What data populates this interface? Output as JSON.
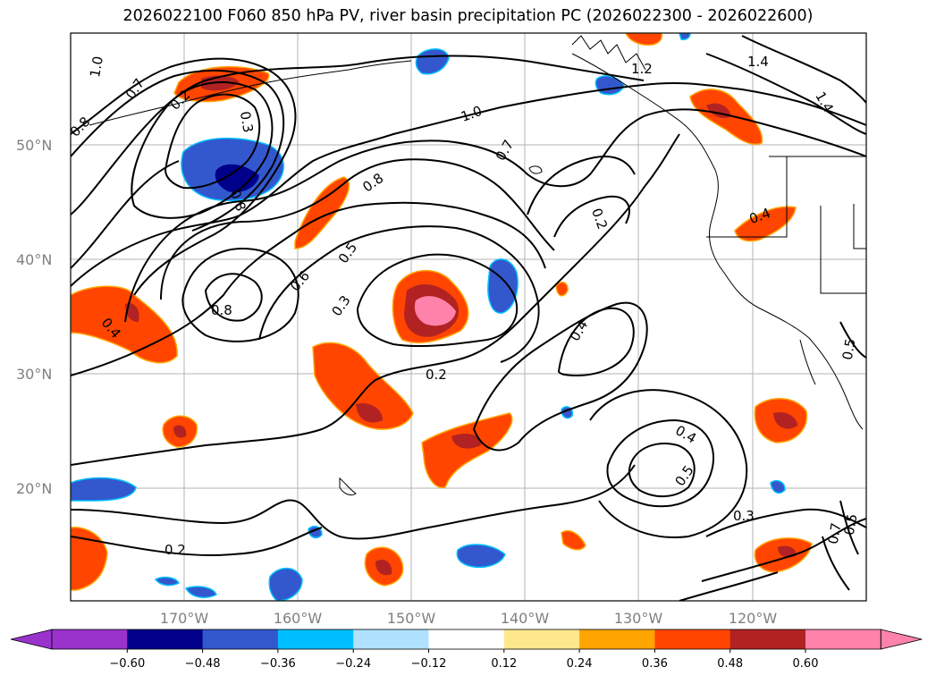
{
  "title": "2026022100 F060 850 hPa PV, river basin precipitation PC (2026022300 - 2026022600)",
  "lat_labels": [
    "50°N",
    "40°N",
    "30°N",
    "20°N"
  ],
  "lon_labels": [
    "170°W",
    "160°W",
    "150°W",
    "140°W",
    "130°W",
    "120°W"
  ],
  "colorbar": {
    "ticks": [
      "−0.60",
      "−0.48",
      "−0.36",
      "−0.24",
      "−0.12",
      "0.12",
      "0.24",
      "0.36",
      "0.48",
      "0.60"
    ],
    "colors": [
      "#9933cc",
      "#00008b",
      "#3357cc",
      "#00bfff",
      "#b0e2ff",
      "#ffffff",
      "#ffe88c",
      "#ffa500",
      "#ff4500",
      "#b22222",
      "#ff82ab",
      "#ff82ab"
    ]
  },
  "contour_labels": {
    "c1": "1.0",
    "c2": "0.7",
    "c3": "0.2",
    "c4": "0.8",
    "c5": "0.8",
    "c6": "0.3",
    "c7": "1.0",
    "c8": "1.2",
    "c9": "1.4",
    "c10": "1.4",
    "c11": "0.7",
    "c12": "0.8",
    "c13": "0.2",
    "c14": "0.4",
    "c15": "0.5",
    "c16": "0.6",
    "c17": "0.3",
    "c18": "0.8",
    "c19": "0.4",
    "c20": "0.2",
    "c21": "0.4",
    "c22": "0.5",
    "c23": "0.3",
    "c24": "0.2",
    "c25": "0.4",
    "c26": "0.5",
    "c27": "0.5",
    "c28": "0.7"
  }
}
